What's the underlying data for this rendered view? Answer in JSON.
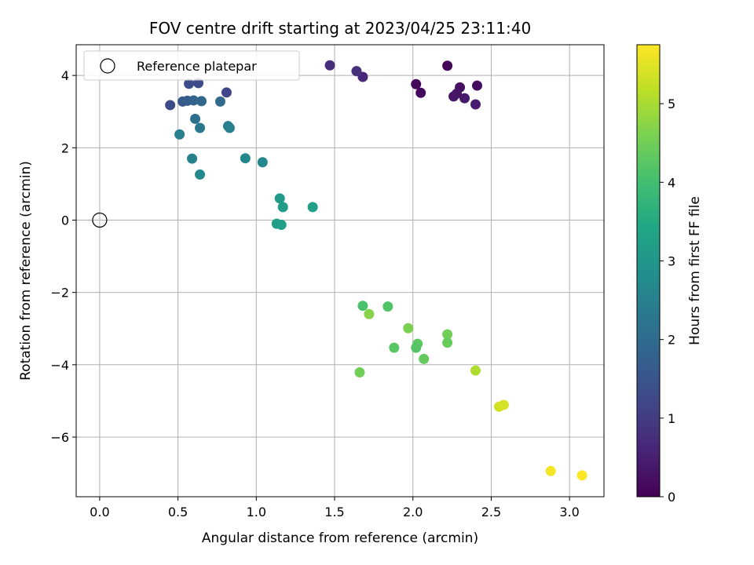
{
  "chart_data": {
    "type": "scatter",
    "title": "FOV centre drift starting at 2023/04/25 23:11:40",
    "xlabel": "Angular distance from reference (arcmin)",
    "ylabel": "Rotation from reference (arcmin)",
    "xlim": [
      -0.15,
      3.22
    ],
    "ylim": [
      -7.65,
      4.85
    ],
    "x_ticks": [
      0.0,
      0.5,
      1.0,
      1.5,
      2.0,
      2.5,
      3.0
    ],
    "x_tick_labels": [
      "0.0",
      "0.5",
      "1.0",
      "1.5",
      "2.0",
      "2.5",
      "3.0"
    ],
    "y_ticks": [
      -6,
      -4,
      -2,
      0,
      2,
      4
    ],
    "y_tick_labels": [
      "−6",
      "−4",
      "−2",
      "0",
      "2",
      "4"
    ],
    "grid": true,
    "legend": {
      "position": "top-left",
      "entries": [
        "Reference platepar"
      ]
    },
    "reference_point": {
      "x": 0.0,
      "y": 0.0
    },
    "colorbar": {
      "label": "Hours from first FF file",
      "colormap": "viridis",
      "range": [
        0,
        5.75
      ],
      "ticks": [
        0,
        1,
        2,
        3,
        4,
        5
      ],
      "tick_labels": [
        "0",
        "1",
        "2",
        "3",
        "4",
        "5"
      ]
    },
    "points": [
      {
        "x": 2.22,
        "y": 4.27,
        "h": 0.05
      },
      {
        "x": 2.02,
        "y": 3.76,
        "h": 0.1
      },
      {
        "x": 2.05,
        "y": 3.52,
        "h": 0.15
      },
      {
        "x": 2.41,
        "y": 3.72,
        "h": 0.2
      },
      {
        "x": 2.3,
        "y": 3.67,
        "h": 0.25
      },
      {
        "x": 2.28,
        "y": 3.5,
        "h": 0.3
      },
      {
        "x": 2.26,
        "y": 3.42,
        "h": 0.35
      },
      {
        "x": 2.33,
        "y": 3.37,
        "h": 0.4
      },
      {
        "x": 2.4,
        "y": 3.2,
        "h": 0.45
      },
      {
        "x": 1.68,
        "y": 3.96,
        "h": 0.65
      },
      {
        "x": 1.64,
        "y": 4.12,
        "h": 0.8
      },
      {
        "x": 1.47,
        "y": 4.28,
        "h": 0.75
      },
      {
        "x": 0.81,
        "y": 3.53,
        "h": 1.2
      },
      {
        "x": 0.63,
        "y": 3.79,
        "h": 1.3
      },
      {
        "x": 0.57,
        "y": 3.77,
        "h": 1.35
      },
      {
        "x": 0.45,
        "y": 3.18,
        "h": 1.3
      },
      {
        "x": 0.53,
        "y": 3.28,
        "h": 1.6
      },
      {
        "x": 0.56,
        "y": 3.3,
        "h": 1.7
      },
      {
        "x": 0.6,
        "y": 3.31,
        "h": 1.8
      },
      {
        "x": 0.65,
        "y": 3.29,
        "h": 1.9
      },
      {
        "x": 0.77,
        "y": 3.28,
        "h": 1.95
      },
      {
        "x": 0.61,
        "y": 2.8,
        "h": 2.1
      },
      {
        "x": 0.64,
        "y": 2.55,
        "h": 2.3
      },
      {
        "x": 0.82,
        "y": 2.6,
        "h": 2.4
      },
      {
        "x": 0.83,
        "y": 2.55,
        "h": 2.45
      },
      {
        "x": 0.51,
        "y": 2.37,
        "h": 2.45
      },
      {
        "x": 0.59,
        "y": 1.7,
        "h": 2.5
      },
      {
        "x": 0.93,
        "y": 1.71,
        "h": 2.6
      },
      {
        "x": 1.04,
        "y": 1.6,
        "h": 2.65
      },
      {
        "x": 0.64,
        "y": 1.26,
        "h": 2.7
      },
      {
        "x": 1.15,
        "y": 0.6,
        "h": 3.1
      },
      {
        "x": 1.17,
        "y": 0.36,
        "h": 3.15
      },
      {
        "x": 1.36,
        "y": 0.36,
        "h": 3.25
      },
      {
        "x": 1.13,
        "y": -0.1,
        "h": 3.2
      },
      {
        "x": 1.16,
        "y": -0.13,
        "h": 3.25
      },
      {
        "x": 1.68,
        "y": -2.37,
        "h": 4.1
      },
      {
        "x": 1.84,
        "y": -2.39,
        "h": 4.15
      },
      {
        "x": 1.72,
        "y": -2.6,
        "h": 4.7
      },
      {
        "x": 1.97,
        "y": -2.99,
        "h": 4.6
      },
      {
        "x": 2.22,
        "y": -3.16,
        "h": 4.5
      },
      {
        "x": 2.22,
        "y": -3.39,
        "h": 4.4
      },
      {
        "x": 2.03,
        "y": -3.42,
        "h": 4.3
      },
      {
        "x": 2.02,
        "y": -3.53,
        "h": 4.2
      },
      {
        "x": 1.88,
        "y": -3.53,
        "h": 4.25
      },
      {
        "x": 2.07,
        "y": -3.84,
        "h": 4.35
      },
      {
        "x": 1.66,
        "y": -4.21,
        "h": 4.5
      },
      {
        "x": 2.4,
        "y": -4.16,
        "h": 5.05
      },
      {
        "x": 2.55,
        "y": -5.16,
        "h": 5.35
      },
      {
        "x": 2.58,
        "y": -5.11,
        "h": 5.4
      },
      {
        "x": 2.88,
        "y": -6.94,
        "h": 5.65
      },
      {
        "x": 3.08,
        "y": -7.06,
        "h": 5.75
      }
    ]
  }
}
